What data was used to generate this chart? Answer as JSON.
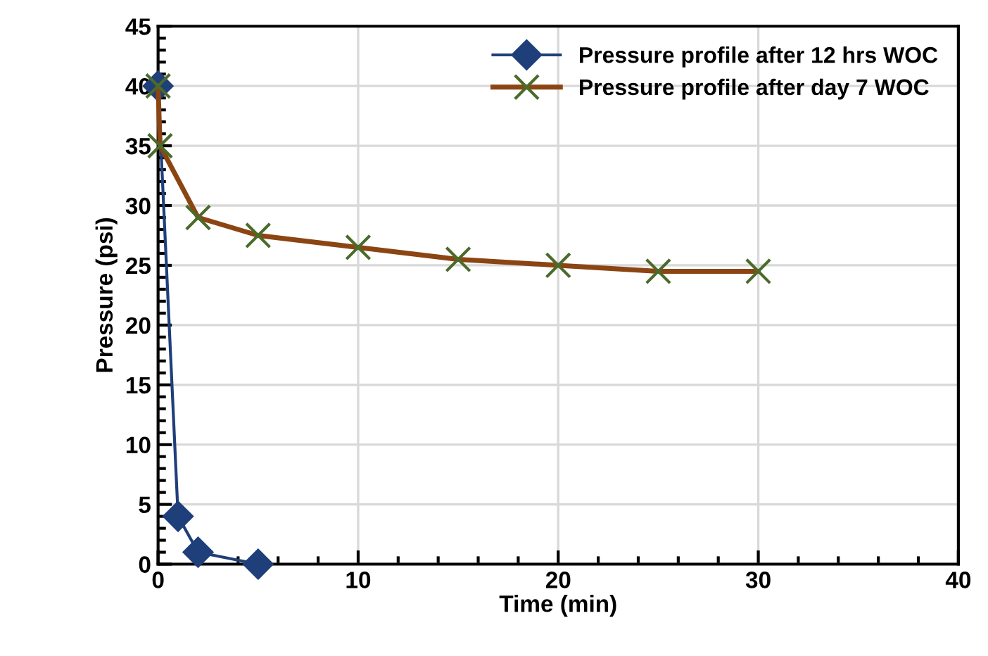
{
  "chart_data": {
    "type": "line",
    "xlabel": "Time (min)",
    "ylabel": "Pressure (psi)",
    "xlim": [
      0,
      40
    ],
    "xticks": [
      0,
      10,
      20,
      30,
      40
    ],
    "ylim": [
      0,
      45
    ],
    "yticks": [
      0,
      5,
      10,
      15,
      20,
      25,
      30,
      35,
      40,
      45
    ],
    "grid": true,
    "legend": "top right",
    "series": [
      {
        "name": "Pressure profile after 12 hrs WOC",
        "color": "#1f3f7a",
        "marker": "diamond",
        "x": [
          0,
          1,
          2,
          5
        ],
        "values": [
          40,
          4,
          1,
          0
        ]
      },
      {
        "name": "Pressure profile after day 7 WOC",
        "color": "#8b4513",
        "marker": "cross",
        "x": [
          0,
          0.1,
          2,
          5,
          10,
          15,
          20,
          25,
          30
        ],
        "values": [
          40,
          35,
          29,
          27.5,
          26.5,
          25.5,
          25,
          24.5,
          24.5
        ]
      }
    ]
  }
}
